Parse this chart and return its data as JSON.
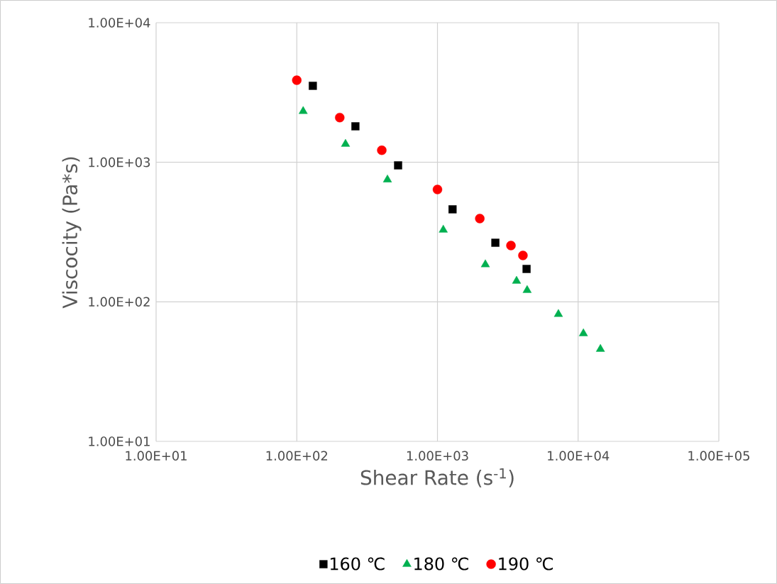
{
  "chart_data": {
    "type": "scatter",
    "xlabel": "Shear Rate  (s$^{-1}$)",
    "ylabel": "Viscocity (Pa*s)",
    "log": "xy",
    "grid": true,
    "legend": "bottom",
    "xlim": [
      10,
      100000
    ],
    "ylim": [
      10,
      10000
    ],
    "xticks": [
      {
        "value": 10,
        "label": "1.00E+01"
      },
      {
        "value": 100,
        "label": "1.00E+02"
      },
      {
        "value": 1000,
        "label": "1.00E+03"
      },
      {
        "value": 10000,
        "label": "1.00E+04"
      },
      {
        "value": 100000,
        "label": "1.00E+05"
      }
    ],
    "yticks": [
      {
        "value": 10,
        "label": "1.00E+01"
      },
      {
        "value": 100,
        "label": "1.00E+02"
      },
      {
        "value": 1000,
        "label": "1.00E+03"
      },
      {
        "value": 10000,
        "label": "1.00E+04"
      }
    ],
    "series": [
      {
        "name": "160 ℃",
        "color": "#000000",
        "marker": "square",
        "x": [
          130,
          261,
          525,
          1280,
          2580,
          4300
        ],
        "values": [
          3530,
          1810,
          950,
          460,
          265,
          172
        ]
      },
      {
        "name": "180 ℃",
        "color": "#00b050",
        "marker": "triangle",
        "x": [
          111,
          222,
          441,
          1100,
          2190,
          3650,
          4340,
          7240,
          10900,
          14400
        ],
        "values": [
          2320,
          1350,
          750,
          328,
          185,
          141,
          121,
          81.5,
          59.3,
          45.8
        ]
      },
      {
        "name": "190 ℃",
        "color": "#ff0000",
        "marker": "circle",
        "x": [
          100,
          202,
          402,
          1000,
          2000,
          3330,
          4050
        ],
        "values": [
          3870,
          2090,
          1220,
          638,
          395,
          253,
          215
        ]
      }
    ]
  }
}
